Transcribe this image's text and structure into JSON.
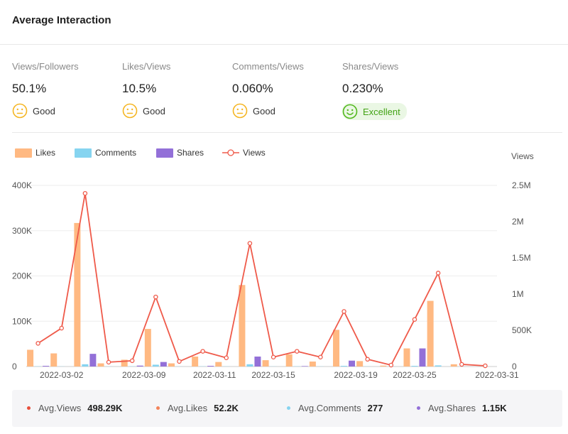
{
  "header": {
    "title": "Average Interaction"
  },
  "metrics": [
    {
      "label": "Views/Followers",
      "value": "50.1%",
      "rating": "Good",
      "icon": "neutral-face-icon"
    },
    {
      "label": "Likes/Views",
      "value": "10.5%",
      "rating": "Good",
      "icon": "neutral-face-icon"
    },
    {
      "label": "Comments/Views",
      "value": "0.060%",
      "rating": "Good",
      "icon": "neutral-face-icon"
    },
    {
      "label": "Shares/Views",
      "value": "0.230%",
      "rating": "Excellent",
      "icon": "smiling-face-icon"
    }
  ],
  "colors": {
    "likes": "#ffb982",
    "comments": "#86d4f0",
    "shares": "#9370d8",
    "views": "#ef5a4a",
    "good": "#f5b623",
    "excellent": "#52b81d",
    "footer_views": "#e84f3c",
    "footer_likes": "#f3835a"
  },
  "chart_data": {
    "type": "bar+line",
    "legend": [
      "Likes",
      "Comments",
      "Shares",
      "Views"
    ],
    "x": [
      "2022-03-01",
      "2022-03-03",
      "2022-03-05",
      "2022-03-07",
      "2022-03-09",
      "2022-03-11",
      "2022-03-13",
      "2022-03-15",
      "2022-03-17",
      "2022-03-19",
      "2022-03-21",
      "2022-03-23",
      "2022-03-25",
      "2022-03-27",
      "2022-03-29",
      "2022-03-31",
      "2022-04-02",
      "2022-04-04",
      "2022-04-06",
      "2022-04-08"
    ],
    "x_tick_labels": [
      "2022-03-02",
      "2022-03-09",
      "2022-03-11",
      "2022-03-15",
      "2022-03-19",
      "2022-03-25",
      "2022-03-31"
    ],
    "x_tick_positions": [
      1.5,
      5,
      8,
      10.5,
      14,
      16.5,
      20
    ],
    "series": [
      {
        "name": "Likes",
        "axis": "left",
        "type": "bar",
        "values": [
          37000,
          29000,
          317000,
          7000,
          15000,
          83000,
          7000,
          22000,
          10000,
          180000,
          14000,
          27000,
          11000,
          81000,
          12000,
          2000,
          40000,
          145000,
          5000,
          0
        ]
      },
      {
        "name": "Comments",
        "axis": "left",
        "type": "bar",
        "values": [
          500,
          300,
          5000,
          300,
          500,
          4000,
          300,
          500,
          300,
          5000,
          300,
          500,
          300,
          1500,
          300,
          300,
          1500,
          2500,
          300,
          0
        ]
      },
      {
        "name": "Shares",
        "axis": "left",
        "type": "bar",
        "values": [
          1500,
          0,
          28000,
          0,
          2000,
          10000,
          0,
          1500,
          0,
          22000,
          0,
          1000,
          0,
          13000,
          0,
          0,
          40000,
          0,
          0,
          0
        ]
      },
      {
        "name": "Views",
        "axis": "right",
        "type": "line",
        "values": [
          320000,
          530000,
          2390000,
          60000,
          80000,
          960000,
          70000,
          210000,
          120000,
          1700000,
          130000,
          210000,
          130000,
          760000,
          100000,
          20000,
          650000,
          1290000,
          30000,
          10000
        ]
      }
    ],
    "y_left": {
      "min": 0,
      "max": 400000,
      "ticks": [
        0,
        100000,
        200000,
        300000,
        400000
      ],
      "tick_labels": [
        "0",
        "100K",
        "200K",
        "300K",
        "400K"
      ]
    },
    "y_right": {
      "label": "Views",
      "min": 0,
      "max": 2500000,
      "ticks": [
        0,
        500000,
        1000000,
        1500000,
        2000000,
        2500000
      ],
      "tick_labels": [
        "0",
        "500K",
        "1M",
        "1.5M",
        "2M",
        "2.5M"
      ]
    },
    "grid": true,
    "legend_position": "top-left"
  },
  "footer": {
    "stats": [
      {
        "label": "Avg.Views",
        "value": "498.29K",
        "color": "#e84f3c"
      },
      {
        "label": "Avg.Likes",
        "value": "52.2K",
        "color": "#f3835a"
      },
      {
        "label": "Avg.Comments",
        "value": "277",
        "color": "#86d4f0"
      },
      {
        "label": "Avg.Shares",
        "value": "1.15K",
        "color": "#9370d8"
      }
    ]
  }
}
